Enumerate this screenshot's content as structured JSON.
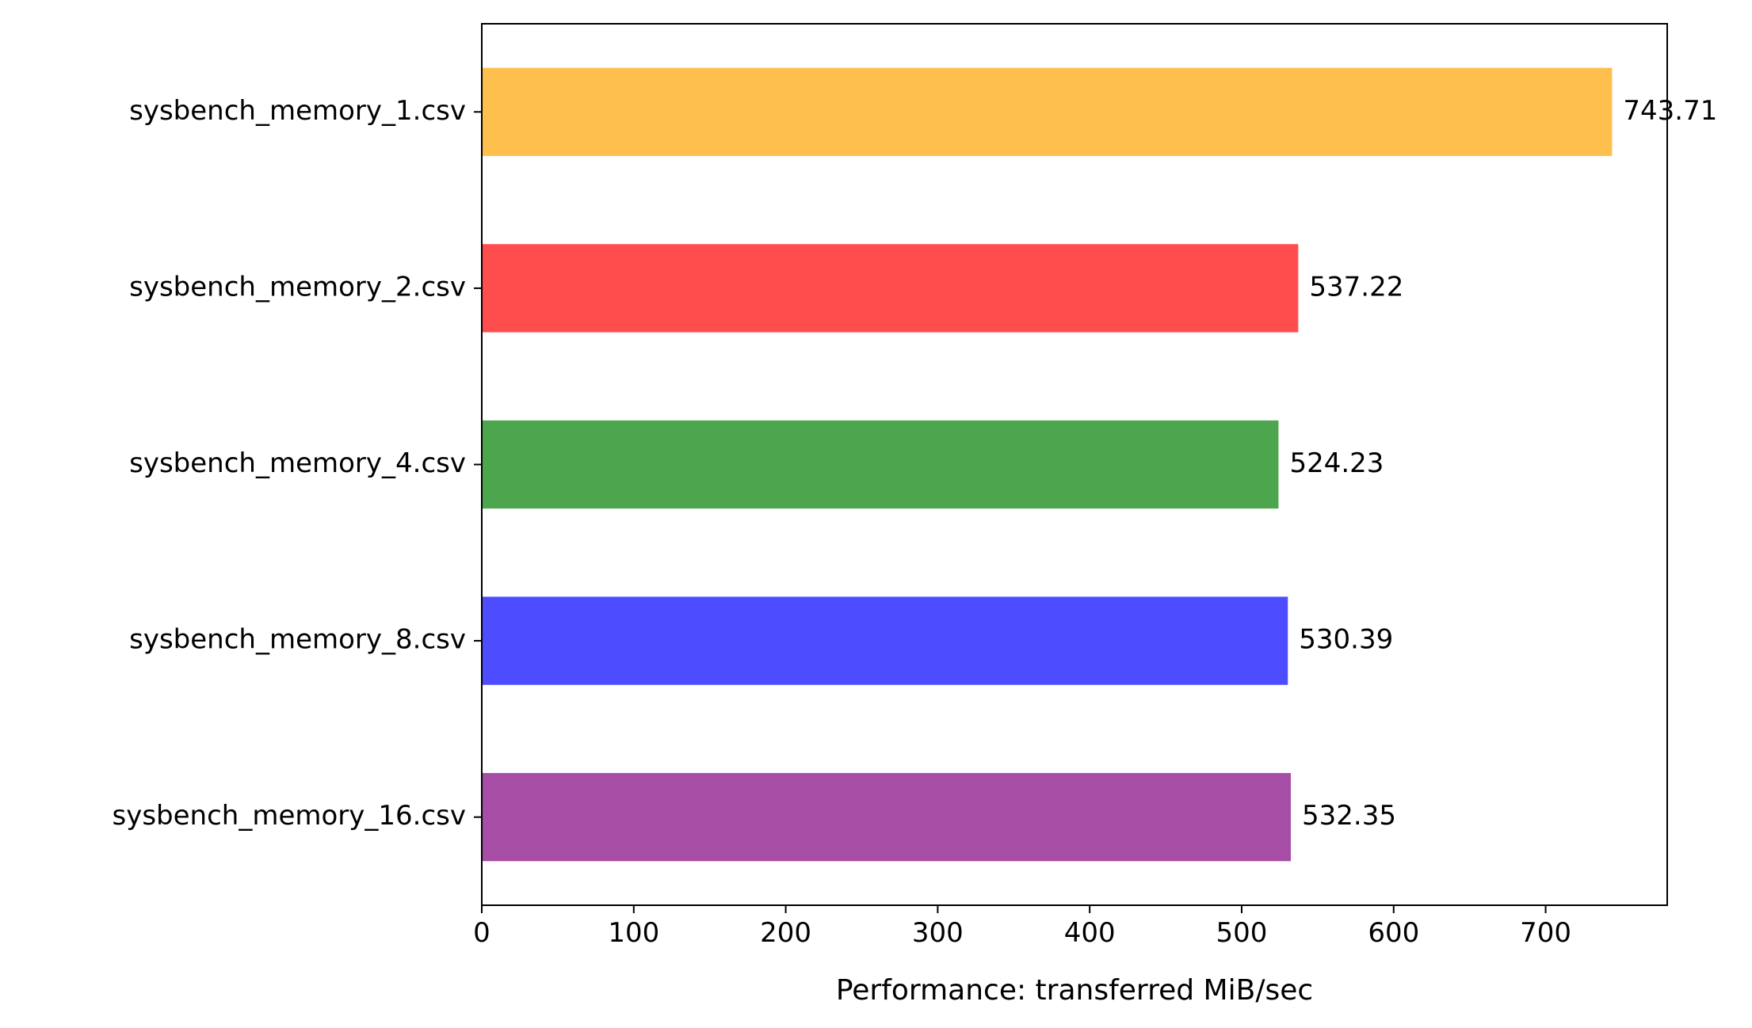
{
  "chart_data": {
    "type": "bar",
    "orientation": "horizontal",
    "categories": [
      "sysbench_memory_1.csv",
      "sysbench_memory_2.csv",
      "sysbench_memory_4.csv",
      "sysbench_memory_8.csv",
      "sysbench_memory_16.csv"
    ],
    "values": [
      743.71,
      537.22,
      524.23,
      530.39,
      532.35
    ],
    "value_labels": [
      "743.71",
      "537.22",
      "524.23",
      "530.39",
      "532.35"
    ],
    "colors": [
      "#ffbf4d",
      "#ff4d4d",
      "#4da64d",
      "#4d4dff",
      "#a64da6"
    ],
    "title": "",
    "xlabel": "Performance: transferred MiB/sec",
    "ylabel": "",
    "xlim": [
      0,
      780
    ],
    "xticks": [
      0,
      100,
      200,
      300,
      400,
      500,
      600,
      700
    ],
    "xtick_labels": [
      "0",
      "100",
      "200",
      "300",
      "400",
      "500",
      "600",
      "700"
    ],
    "grid": false,
    "legend": "none"
  }
}
